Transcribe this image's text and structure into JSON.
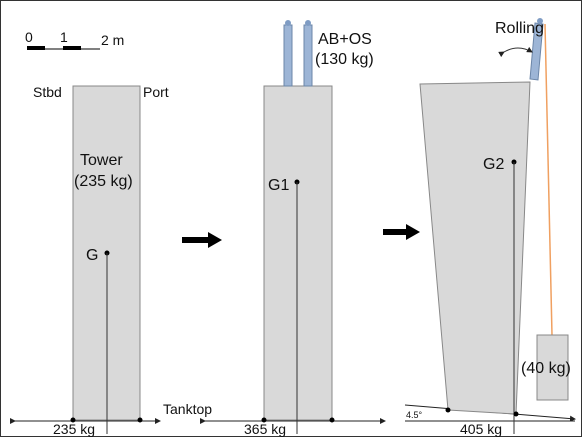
{
  "scale": {
    "zero": "0",
    "one": "1",
    "two": "2 m"
  },
  "panel1": {
    "stbd": "Stbd",
    "port": "Port",
    "tower": "Tower",
    "tower_mass": "(235 kg)",
    "g": "G",
    "total": "235 kg"
  },
  "panel2": {
    "ab_os": "AB+OS",
    "ab_os_mass": "(130 kg)",
    "g1": "G1",
    "total": "365 kg"
  },
  "panel3": {
    "rolling": "Rolling",
    "g2": "G2",
    "weight": "(40 kg)",
    "angle": "4.5°",
    "total": "405 kg"
  },
  "tanktop": "Tanktop"
}
